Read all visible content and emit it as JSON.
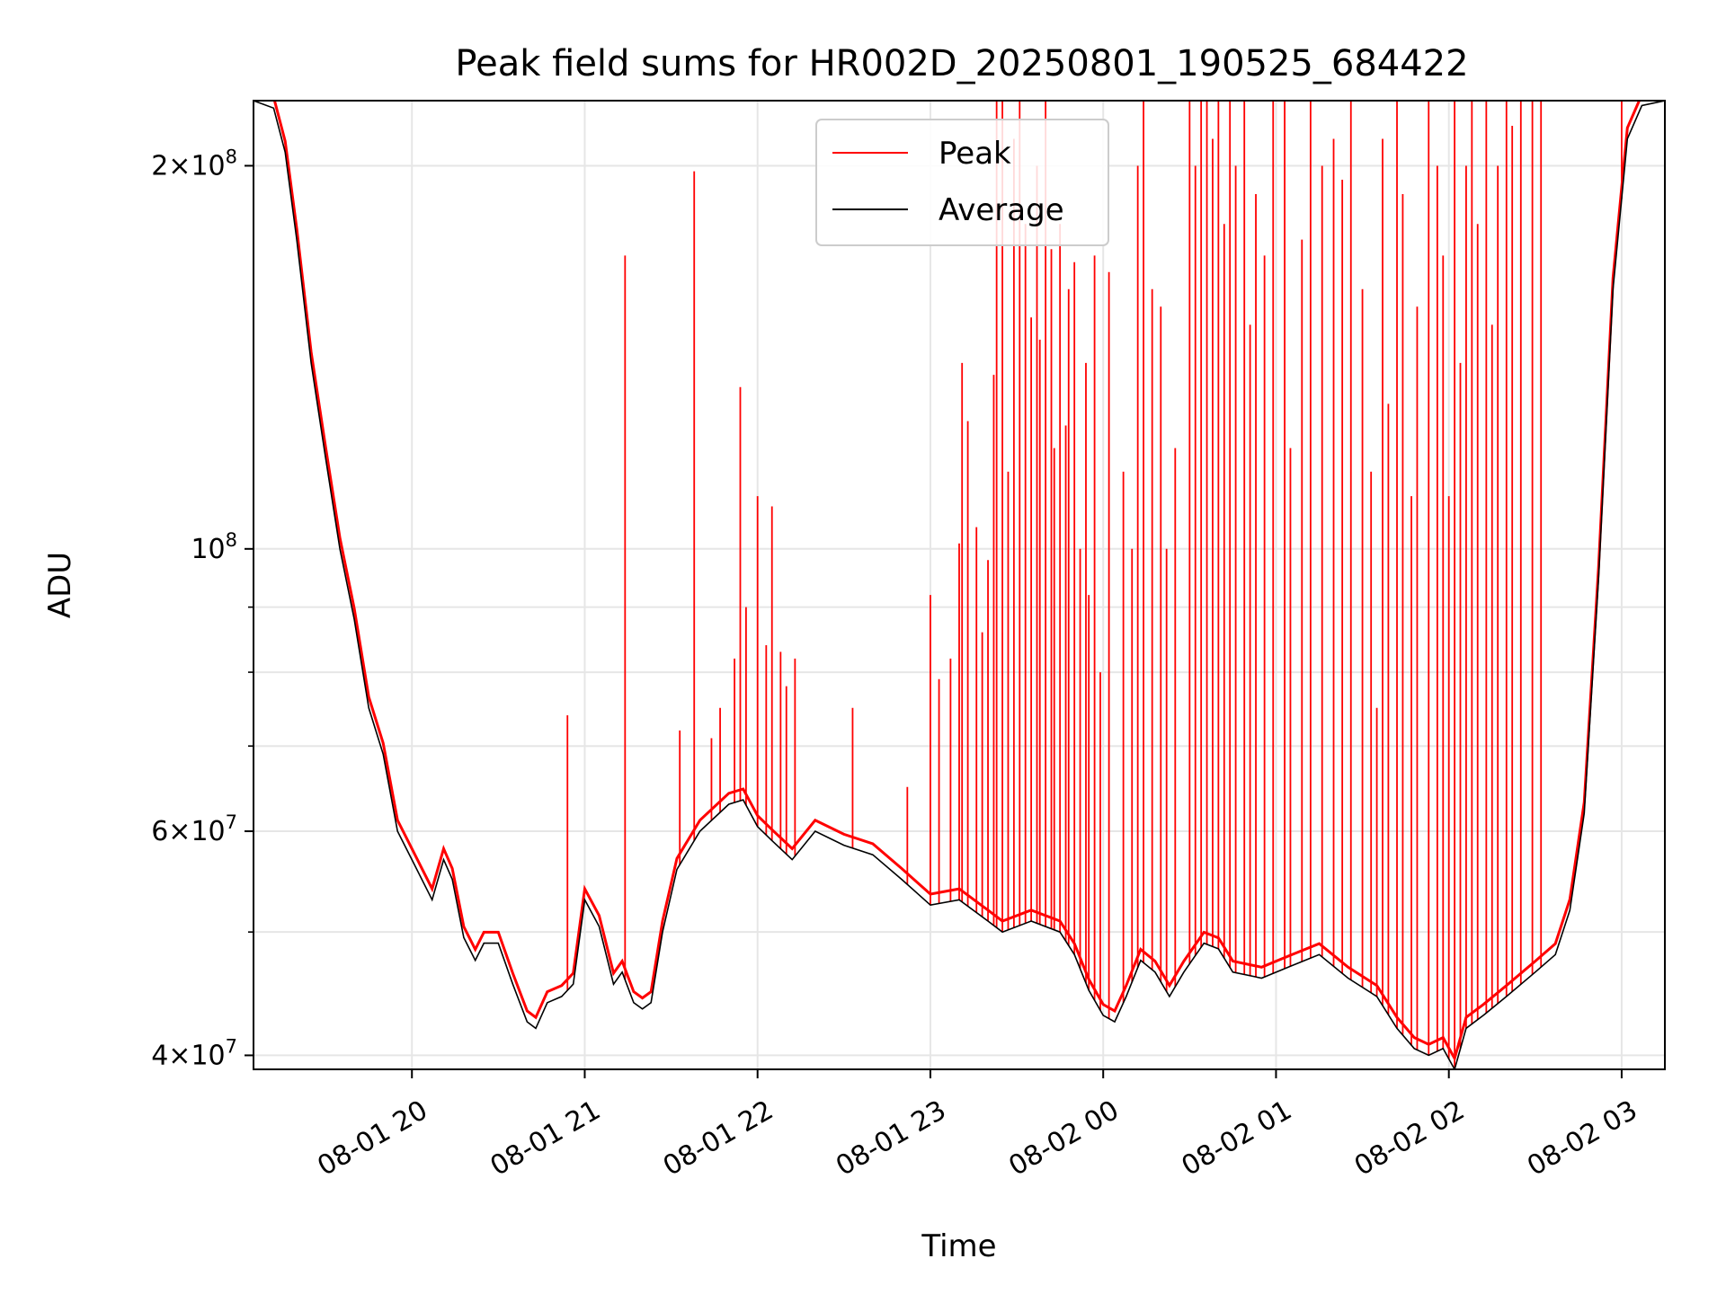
{
  "chart_data": {
    "type": "line",
    "title": "Peak field sums for HR002D_20250801_190525_684422",
    "xlabel": "Time",
    "ylabel": "ADU",
    "y_scale": "log",
    "grid": true,
    "legend_position": "top-center",
    "x_range": [
      "08-01 19:05",
      "08-02 03:15"
    ],
    "ylim": [
      39000000,
      225000000
    ],
    "x_ticks": [
      {
        "value": "08-01 20:00",
        "label": "08-01 20"
      },
      {
        "value": "08-01 21:00",
        "label": "08-01 21"
      },
      {
        "value": "08-01 22:00",
        "label": "08-01 22"
      },
      {
        "value": "08-01 23:00",
        "label": "08-01 23"
      },
      {
        "value": "08-02 00:00",
        "label": "08-02 00"
      },
      {
        "value": "08-02 01:00",
        "label": "08-02 01"
      },
      {
        "value": "08-02 02:00",
        "label": "08-02 02"
      },
      {
        "value": "08-02 03:00",
        "label": "08-02 03"
      }
    ],
    "y_ticks": [
      {
        "value": 40000000,
        "mant": "4",
        "exp": "7",
        "has_mant": true
      },
      {
        "value": 60000000,
        "mant": "6",
        "exp": "7",
        "has_mant": true
      },
      {
        "value": 100000000,
        "mant": "",
        "exp": "8",
        "has_mant": false
      },
      {
        "value": 200000000,
        "mant": "2",
        "exp": "8",
        "has_mant": true
      }
    ],
    "y_minor_ticks": [
      50000000,
      70000000,
      80000000,
      90000000
    ],
    "series": [
      {
        "name": "Average",
        "color": "#000000",
        "points": [
          [
            "08-01 19:05",
            225000000
          ],
          [
            "08-01 19:12",
            222000000
          ],
          [
            "08-01 19:16",
            205000000
          ],
          [
            "08-01 19:20",
            175000000
          ],
          [
            "08-01 19:25",
            140000000
          ],
          [
            "08-01 19:30",
            118000000
          ],
          [
            "08-01 19:35",
            100000000
          ],
          [
            "08-01 19:40",
            88000000
          ],
          [
            "08-01 19:45",
            75000000
          ],
          [
            "08-01 19:50",
            69000000
          ],
          [
            "08-01 19:55",
            60000000
          ],
          [
            "08-01 20:00",
            57000000
          ],
          [
            "08-01 20:07",
            53000000
          ],
          [
            "08-01 20:11",
            57000000
          ],
          [
            "08-01 20:14",
            55000000
          ],
          [
            "08-01 20:18",
            49500000
          ],
          [
            "08-01 20:22",
            47500000
          ],
          [
            "08-01 20:25",
            49000000
          ],
          [
            "08-01 20:30",
            49000000
          ],
          [
            "08-01 20:35",
            45500000
          ],
          [
            "08-01 20:40",
            42500000
          ],
          [
            "08-01 20:43",
            42000000
          ],
          [
            "08-01 20:47",
            44000000
          ],
          [
            "08-01 20:52",
            44500000
          ],
          [
            "08-01 20:56",
            45500000
          ],
          [
            "08-01 21:00",
            53000000
          ],
          [
            "08-01 21:05",
            50500000
          ],
          [
            "08-01 21:10",
            45500000
          ],
          [
            "08-01 21:13",
            46500000
          ],
          [
            "08-01 21:17",
            44000000
          ],
          [
            "08-01 21:20",
            43500000
          ],
          [
            "08-01 21:23",
            44000000
          ],
          [
            "08-01 21:27",
            50000000
          ],
          [
            "08-01 21:32",
            56000000
          ],
          [
            "08-01 21:40",
            60000000
          ],
          [
            "08-01 21:50",
            63000000
          ],
          [
            "08-01 21:55",
            63500000
          ],
          [
            "08-01 22:00",
            60500000
          ],
          [
            "08-01 22:05",
            59000000
          ],
          [
            "08-01 22:12",
            57000000
          ],
          [
            "08-01 22:20",
            60000000
          ],
          [
            "08-01 22:30",
            58500000
          ],
          [
            "08-01 22:40",
            57500000
          ],
          [
            "08-01 22:50",
            55000000
          ],
          [
            "08-01 23:00",
            52500000
          ],
          [
            "08-01 23:10",
            53000000
          ],
          [
            "08-01 23:20",
            51000000
          ],
          [
            "08-01 23:25",
            50000000
          ],
          [
            "08-01 23:35",
            51000000
          ],
          [
            "08-01 23:45",
            50000000
          ],
          [
            "08-01 23:50",
            48000000
          ],
          [
            "08-01 23:55",
            45000000
          ],
          [
            "08-02 00:00",
            43000000
          ],
          [
            "08-02 00:04",
            42500000
          ],
          [
            "08-02 00:08",
            44500000
          ],
          [
            "08-02 00:13",
            47500000
          ],
          [
            "08-02 00:18",
            46500000
          ],
          [
            "08-02 00:23",
            44500000
          ],
          [
            "08-02 00:28",
            46500000
          ],
          [
            "08-02 00:35",
            49000000
          ],
          [
            "08-02 00:40",
            48500000
          ],
          [
            "08-02 00:45",
            46500000
          ],
          [
            "08-02 00:55",
            46000000
          ],
          [
            "08-02 01:05",
            47000000
          ],
          [
            "08-02 01:15",
            48000000
          ],
          [
            "08-02 01:25",
            46000000
          ],
          [
            "08-02 01:35",
            44500000
          ],
          [
            "08-02 01:42",
            42000000
          ],
          [
            "08-02 01:48",
            40500000
          ],
          [
            "08-02 01:53",
            40000000
          ],
          [
            "08-02 01:58",
            40500000
          ],
          [
            "08-02 02:02",
            39000000
          ],
          [
            "08-02 02:06",
            42000000
          ],
          [
            "08-02 02:12",
            43000000
          ],
          [
            "08-02 02:20",
            44500000
          ],
          [
            "08-02 02:30",
            46500000
          ],
          [
            "08-02 02:37",
            48000000
          ],
          [
            "08-02 02:42",
            52000000
          ],
          [
            "08-02 02:47",
            62000000
          ],
          [
            "08-02 02:52",
            95000000
          ],
          [
            "08-02 02:57",
            160000000
          ],
          [
            "08-02 03:02",
            210000000
          ],
          [
            "08-02 03:07",
            223000000
          ],
          [
            "08-02 03:15",
            225000000
          ]
        ]
      },
      {
        "name": "Peak",
        "color": "#ff0000",
        "spikes": [
          [
            "08-01 20:54",
            74000000
          ],
          [
            "08-01 21:14",
            170000000
          ],
          [
            "08-01 21:33",
            72000000
          ],
          [
            "08-01 21:38",
            198000000
          ],
          [
            "08-01 21:44",
            71000000
          ],
          [
            "08-01 21:47",
            75000000
          ],
          [
            "08-01 21:52",
            82000000
          ],
          [
            "08-01 21:54",
            134000000
          ],
          [
            "08-01 21:56",
            90000000
          ],
          [
            "08-01 22:00",
            110000000
          ],
          [
            "08-01 22:03",
            84000000
          ],
          [
            "08-01 22:05",
            108000000
          ],
          [
            "08-01 22:08",
            83000000
          ],
          [
            "08-01 22:10",
            78000000
          ],
          [
            "08-01 22:13",
            82000000
          ],
          [
            "08-01 22:33",
            75000000
          ],
          [
            "08-01 22:52",
            65000000
          ],
          [
            "08-01 23:00",
            92000000
          ],
          [
            "08-01 23:03",
            79000000
          ],
          [
            "08-01 23:07",
            82000000
          ],
          [
            "08-01 23:10",
            101000000
          ],
          [
            "08-01 23:11",
            140000000
          ],
          [
            "08-01 23:13",
            126000000
          ],
          [
            "08-01 23:16",
            104000000
          ],
          [
            "08-01 23:18",
            86000000
          ],
          [
            "08-01 23:20",
            98000000
          ],
          [
            "08-01 23:22",
            137000000
          ],
          [
            "08-01 23:23",
            225000000
          ],
          [
            "08-01 23:25",
            225000000
          ],
          [
            "08-01 23:27",
            115000000
          ],
          [
            "08-01 23:29",
            210000000
          ],
          [
            "08-01 23:31",
            225000000
          ],
          [
            "08-01 23:33",
            180000000
          ],
          [
            "08-01 23:35",
            152000000
          ],
          [
            "08-01 23:37",
            200000000
          ],
          [
            "08-01 23:38",
            146000000
          ],
          [
            "08-01 23:40",
            225000000
          ],
          [
            "08-01 23:42",
            172000000
          ],
          [
            "08-01 23:43",
            120000000
          ],
          [
            "08-01 23:45",
            180000000
          ],
          [
            "08-01 23:47",
            125000000
          ],
          [
            "08-01 23:48",
            160000000
          ],
          [
            "08-01 23:50",
            168000000
          ],
          [
            "08-01 23:52",
            100000000
          ],
          [
            "08-01 23:54",
            140000000
          ],
          [
            "08-01 23:55",
            92000000
          ],
          [
            "08-01 23:57",
            170000000
          ],
          [
            "08-01 23:59",
            80000000
          ],
          [
            "08-02 00:02",
            165000000
          ],
          [
            "08-02 00:07",
            115000000
          ],
          [
            "08-02 00:10",
            100000000
          ],
          [
            "08-02 00:12",
            200000000
          ],
          [
            "08-02 00:14",
            225000000
          ],
          [
            "08-02 00:17",
            160000000
          ],
          [
            "08-02 00:20",
            155000000
          ],
          [
            "08-02 00:22",
            100000000
          ],
          [
            "08-02 00:25",
            120000000
          ],
          [
            "08-02 00:30",
            225000000
          ],
          [
            "08-02 00:32",
            200000000
          ],
          [
            "08-02 00:34",
            225000000
          ],
          [
            "08-02 00:36",
            225000000
          ],
          [
            "08-02 00:38",
            210000000
          ],
          [
            "08-02 00:40",
            225000000
          ],
          [
            "08-02 00:42",
            180000000
          ],
          [
            "08-02 00:44",
            225000000
          ],
          [
            "08-02 00:46",
            200000000
          ],
          [
            "08-02 00:49",
            225000000
          ],
          [
            "08-02 00:51",
            150000000
          ],
          [
            "08-02 00:53",
            190000000
          ],
          [
            "08-02 00:56",
            170000000
          ],
          [
            "08-02 00:59",
            225000000
          ],
          [
            "08-02 01:03",
            225000000
          ],
          [
            "08-02 01:05",
            120000000
          ],
          [
            "08-02 01:09",
            175000000
          ],
          [
            "08-02 01:12",
            225000000
          ],
          [
            "08-02 01:16",
            200000000
          ],
          [
            "08-02 01:20",
            210000000
          ],
          [
            "08-02 01:23",
            195000000
          ],
          [
            "08-02 01:26",
            225000000
          ],
          [
            "08-02 01:30",
            160000000
          ],
          [
            "08-02 01:33",
            115000000
          ],
          [
            "08-02 01:35",
            75000000
          ],
          [
            "08-02 01:37",
            210000000
          ],
          [
            "08-02 01:39",
            130000000
          ],
          [
            "08-02 01:42",
            225000000
          ],
          [
            "08-02 01:44",
            190000000
          ],
          [
            "08-02 01:47",
            110000000
          ],
          [
            "08-02 01:49",
            155000000
          ],
          [
            "08-02 01:53",
            225000000
          ],
          [
            "08-02 01:56",
            200000000
          ],
          [
            "08-02 01:58",
            170000000
          ],
          [
            "08-02 02:00",
            110000000
          ],
          [
            "08-02 02:02",
            225000000
          ],
          [
            "08-02 02:04",
            140000000
          ],
          [
            "08-02 02:06",
            200000000
          ],
          [
            "08-02 02:08",
            225000000
          ],
          [
            "08-02 02:10",
            180000000
          ],
          [
            "08-02 02:13",
            225000000
          ],
          [
            "08-02 02:15",
            150000000
          ],
          [
            "08-02 02:17",
            200000000
          ],
          [
            "08-02 02:20",
            225000000
          ],
          [
            "08-02 02:22",
            215000000
          ],
          [
            "08-02 02:25",
            225000000
          ],
          [
            "08-02 02:29",
            225000000
          ],
          [
            "08-02 02:32",
            225000000
          ],
          [
            "08-02 03:00",
            225000000
          ]
        ]
      }
    ]
  }
}
